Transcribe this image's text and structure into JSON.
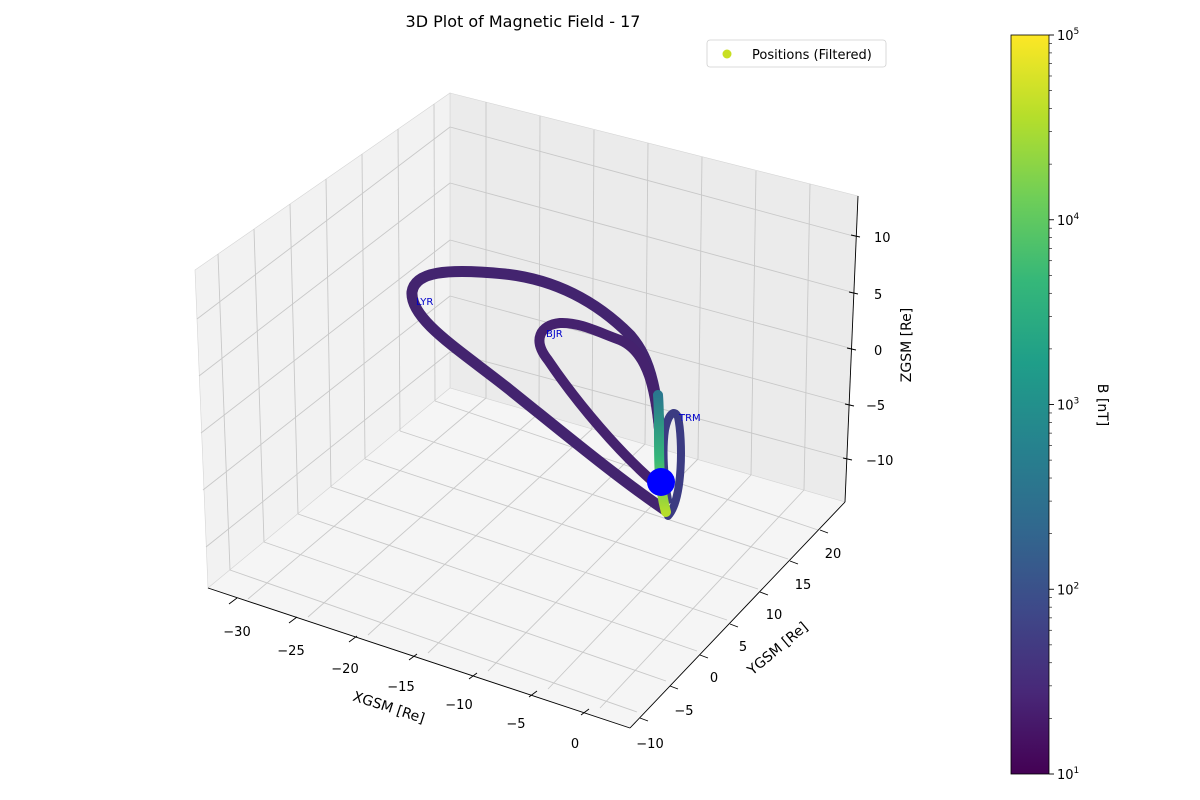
{
  "chart_data": {
    "type": "scatter",
    "title": "3D Plot of Magnetic Field - 17",
    "xlabel": "XGSM [Re]",
    "ylabel": "YGSM [Re]",
    "zlabel": "ZGSM [Re]",
    "x_ticks": [
      "−30",
      "−25",
      "−20",
      "−15",
      "−10",
      "−5",
      "0"
    ],
    "y_ticks": [
      "−10",
      "−5",
      "0",
      "5",
      "10",
      "15",
      "20"
    ],
    "z_ticks": [
      "−10",
      "−5",
      "0",
      "5",
      "10"
    ],
    "xlim": [
      -32,
      1
    ],
    "ylim": [
      -11,
      24
    ],
    "zlim": [
      -13,
      12
    ],
    "grid": true,
    "legend": {
      "label": "Positions (Filtered)",
      "placement": "top-right",
      "marker_color": "#c8df22"
    },
    "colorbar": {
      "label": "B [nT]",
      "scale": "log",
      "range": [
        10,
        100000
      ],
      "ticks": [
        {
          "base": "10",
          "exp": "1"
        },
        {
          "base": "10",
          "exp": "2"
        },
        {
          "base": "10",
          "exp": "3"
        },
        {
          "base": "10",
          "exp": "4"
        },
        {
          "base": "10",
          "exp": "5"
        }
      ],
      "colormap": [
        "#440154",
        "#482878",
        "#3e4989",
        "#31688e",
        "#26828e",
        "#1f9e89",
        "#35b779",
        "#6ece58",
        "#b5de2b",
        "#fde725"
      ]
    },
    "stations": [
      {
        "label": "LYR"
      },
      {
        "label": "BJR"
      },
      {
        "label": "TRM"
      }
    ],
    "earth_marker": {
      "color": "#0000ff"
    },
    "field_line_color": "#45226e"
  }
}
